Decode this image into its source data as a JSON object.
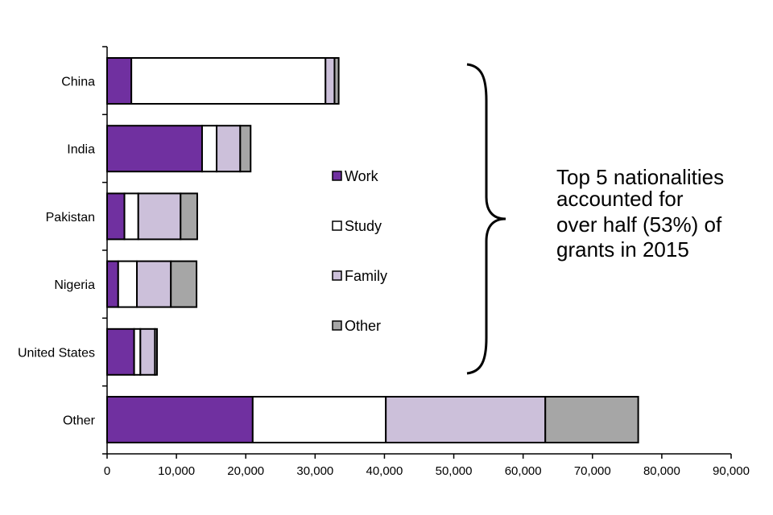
{
  "chart_data": {
    "type": "bar",
    "orientation": "horizontal",
    "stacked": true,
    "categories": [
      "China",
      "India",
      "Pakistan",
      "Nigeria",
      "United States",
      "Other"
    ],
    "series": [
      {
        "name": "Work",
        "color": "#7030a0",
        "values": [
          3500,
          13700,
          2500,
          1600,
          3900,
          21000
        ]
      },
      {
        "name": "Study",
        "color": "#ffffff",
        "values": [
          28000,
          2100,
          2000,
          2700,
          900,
          19200
        ]
      },
      {
        "name": "Family",
        "color": "#ccc0da",
        "values": [
          1300,
          3400,
          6100,
          4900,
          2100,
          23000
        ]
      },
      {
        "name": "Other",
        "color": "#a6a6a6",
        "values": [
          600,
          1500,
          2400,
          3700,
          300,
          13400
        ]
      }
    ],
    "xlim": [
      0,
      90000
    ],
    "xticks": [
      "0",
      "10,000",
      "20,000",
      "30,000",
      "40,000",
      "50,000",
      "60,000",
      "70,000",
      "80,000",
      "90,000"
    ],
    "xtick_values": [
      0,
      10000,
      20000,
      30000,
      40000,
      50000,
      60000,
      70000,
      80000,
      90000
    ],
    "grid": false,
    "legend_position": "center",
    "annotation": {
      "lines": [
        "Top 5 nationalities",
        "accounted for",
        "over half (53%) of",
        "grants in 2015"
      ],
      "brace_categories": [
        "China",
        "India",
        "Pakistan",
        "Nigeria",
        "United States"
      ]
    }
  }
}
